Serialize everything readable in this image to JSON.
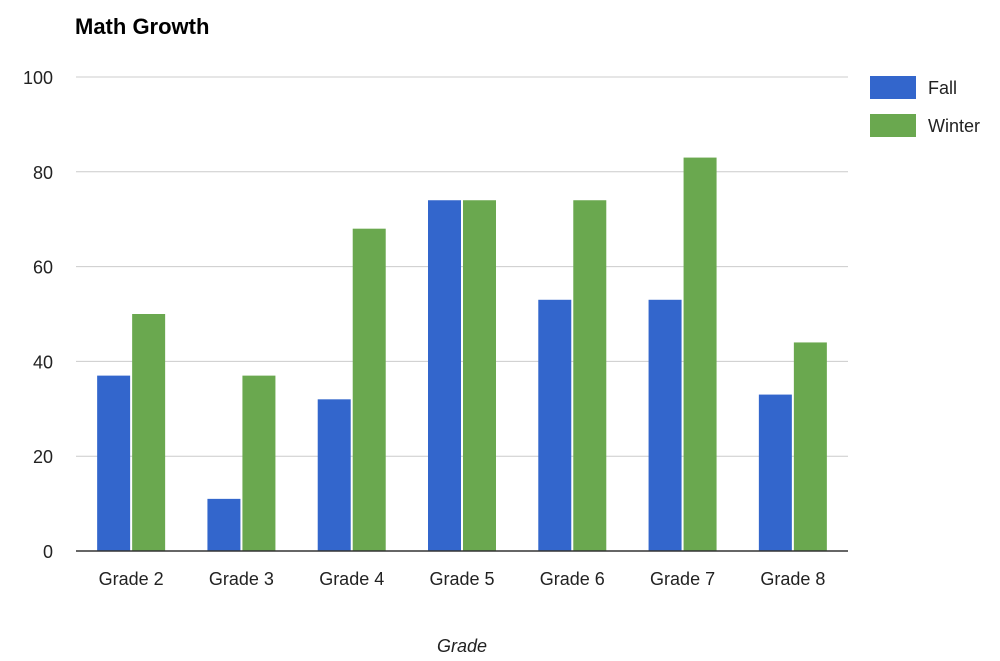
{
  "chart_data": {
    "type": "bar",
    "title": "Math Growth",
    "xlabel": "Grade",
    "ylabel": "",
    "categories": [
      "Grade 2",
      "Grade 3",
      "Grade 4",
      "Grade 5",
      "Grade 6",
      "Grade 7",
      "Grade 8"
    ],
    "series": [
      {
        "name": "Fall",
        "color": "#3366cc",
        "values": [
          37,
          11,
          32,
          74,
          53,
          53,
          33
        ]
      },
      {
        "name": "Winter",
        "color": "#6aa84f",
        "values": [
          50,
          37,
          68,
          74,
          74,
          83,
          44
        ]
      }
    ],
    "ylim": [
      0,
      100
    ],
    "yticks": [
      "0",
      "20",
      "40",
      "60",
      "80",
      "100"
    ],
    "grid": true,
    "legend_position": "right"
  }
}
